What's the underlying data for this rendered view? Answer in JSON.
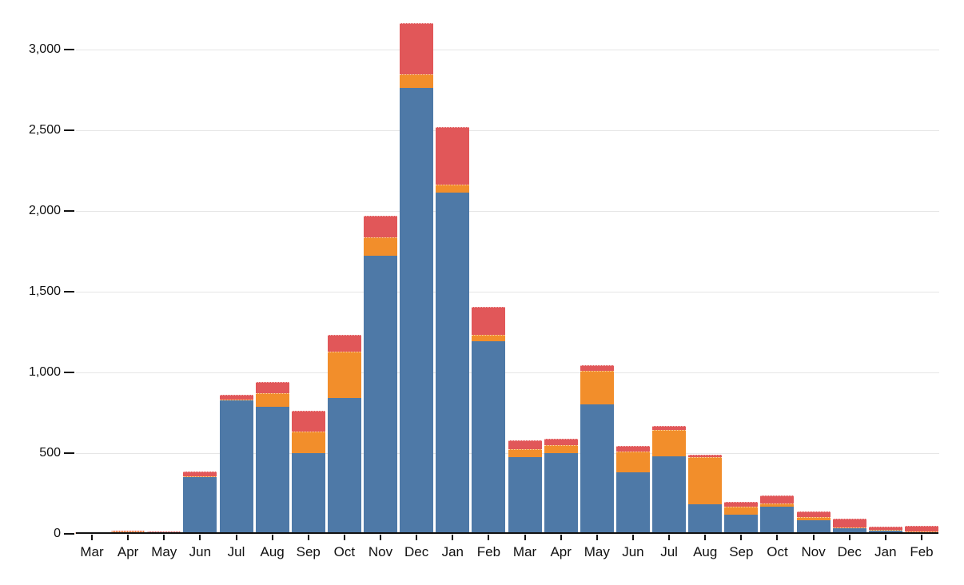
{
  "chart_data": {
    "type": "bar",
    "stacked": true,
    "title": "",
    "xlabel": "",
    "ylabel": "",
    "legend": "none",
    "grid": true,
    "grid_color": "#e6e6e6",
    "axis_color": "#111111",
    "ylim": [
      0,
      3200
    ],
    "categories": [
      "Mar",
      "Apr",
      "May",
      "Jun",
      "Jul",
      "Aug",
      "Sep",
      "Oct",
      "Nov",
      "Dec",
      "Jan",
      "Feb",
      "Mar",
      "Apr",
      "May",
      "Jun",
      "Jul",
      "Aug",
      "Sep",
      "Oct",
      "Nov",
      "Dec",
      "Jan",
      "Feb"
    ],
    "series": [
      {
        "name": "blue",
        "color": "#4e79a7",
        "values": [
          3,
          10,
          8,
          352,
          825,
          785,
          500,
          840,
          1725,
          2760,
          2115,
          1195,
          475,
          500,
          800,
          380,
          480,
          185,
          120,
          170,
          85,
          35,
          22,
          10
        ]
      },
      {
        "name": "orange",
        "color": "#f28e2b",
        "values": [
          1,
          2,
          3,
          3,
          5,
          85,
          135,
          290,
          110,
          85,
          50,
          40,
          50,
          50,
          210,
          130,
          165,
          290,
          50,
          20,
          20,
          5,
          2,
          2
        ]
      },
      {
        "name": "red",
        "color": "#e15759",
        "values": [
          4,
          8,
          3,
          30,
          30,
          70,
          125,
          105,
          135,
          320,
          355,
          170,
          55,
          40,
          35,
          35,
          25,
          15,
          30,
          50,
          35,
          55,
          21,
          36
        ]
      }
    ],
    "y_ticks": [
      {
        "value": 0,
        "label": "0"
      },
      {
        "value": 500,
        "label": "500"
      },
      {
        "value": 1000,
        "label": "1,000"
      },
      {
        "value": 1500,
        "label": "1,500"
      },
      {
        "value": 2000,
        "label": "2,000"
      },
      {
        "value": 2500,
        "label": "2,500"
      },
      {
        "value": 3000,
        "label": "3,000"
      }
    ]
  }
}
